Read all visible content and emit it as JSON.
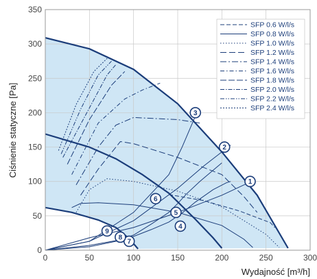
{
  "chart_data": {
    "type": "line",
    "title": "",
    "xlabel": "Wydajność [m³/h]",
    "ylabel": "Ciśnienie statyczne [Pa]",
    "xlim": [
      0,
      300
    ],
    "ylim": [
      0,
      350
    ],
    "xticks": [
      "0",
      "50",
      "100",
      "150",
      "200",
      "250",
      "300"
    ],
    "yticks": [
      "0",
      "50",
      "100",
      "150",
      "200",
      "250",
      "300",
      "350"
    ],
    "grid": true,
    "legend_position": "top-right",
    "colors": {
      "line": "#1b3d7a",
      "fill": "#cfe6f5",
      "grid": "#c8c8c8"
    },
    "envelope": {
      "name": "",
      "points": [
        [
          0,
          309
        ],
        [
          50,
          293
        ],
        [
          100,
          263
        ],
        [
          150,
          213
        ],
        [
          200,
          143
        ],
        [
          240,
          80
        ],
        [
          275,
          3
        ]
      ]
    },
    "fan_curves": [
      {
        "name": "",
        "points": [
          [
            0,
            169
          ],
          [
            50,
            150
          ],
          [
            80,
            133
          ],
          [
            110,
            110
          ],
          [
            140,
            83
          ],
          [
            170,
            45
          ],
          [
            190,
            18
          ],
          [
            200,
            3
          ]
        ]
      },
      {
        "name": "",
        "points": [
          [
            0,
            62
          ],
          [
            30,
            55
          ],
          [
            60,
            44
          ],
          [
            80,
            33
          ],
          [
            95,
            17
          ],
          [
            105,
            2
          ]
        ]
      }
    ],
    "series": [
      {
        "name": "SFP 0.6 W/l/s",
        "dash": "6,3",
        "points": [
          [
            140,
            81
          ],
          [
            180,
            72
          ],
          [
            220,
            57
          ],
          [
            255,
            40
          ],
          [
            260,
            33
          ]
        ]
      },
      {
        "name": "SFP 0.8 W/l/s",
        "dash": "",
        "points": [
          [
            30,
            62
          ],
          [
            40,
            68
          ],
          [
            60,
            69
          ],
          [
            100,
            66
          ],
          [
            150,
            55
          ],
          [
            200,
            36
          ],
          [
            225,
            16
          ],
          [
            235,
            4
          ]
        ]
      },
      {
        "name": "SFP 1.0 W/l/s",
        "dash": "1.5,2.5",
        "points": [
          [
            35,
            55
          ],
          [
            50,
            88
          ],
          [
            70,
            104
          ],
          [
            100,
            100
          ],
          [
            150,
            86
          ],
          [
            200,
            63
          ],
          [
            250,
            23
          ],
          [
            265,
            4
          ]
        ]
      },
      {
        "name": "SFP 1.2 W/l/s",
        "dash": "9,4",
        "points": [
          [
            40,
            80
          ],
          [
            60,
            118
          ],
          [
            85,
            158
          ],
          [
            100,
            155
          ],
          [
            150,
            135
          ],
          [
            200,
            110
          ],
          [
            225,
            78
          ],
          [
            240,
            55
          ]
        ]
      },
      {
        "name": "SFP 1.4 W/l/s",
        "dash": "9,3,2,3",
        "points": [
          [
            35,
            95
          ],
          [
            60,
            150
          ],
          [
            80,
            182
          ],
          [
            100,
            193
          ],
          [
            150,
            190
          ],
          [
            175,
            185
          ]
        ]
      },
      {
        "name": "SFP 1.6 W/l/s",
        "dash": "6,3,1.5,3",
        "points": [
          [
            30,
            110
          ],
          [
            60,
            185
          ],
          [
            90,
            220
          ],
          [
            110,
            233
          ],
          [
            130,
            243
          ]
        ]
      },
      {
        "name": "SFP 1.8 W/l/s",
        "dash": "9,3",
        "points": [
          [
            25,
            125
          ],
          [
            50,
            190
          ],
          [
            75,
            240
          ],
          [
            90,
            260
          ]
        ]
      },
      {
        "name": "SFP 2.0 W/l/s",
        "dash": "6,2,1.5,2",
        "points": [
          [
            20,
            135
          ],
          [
            45,
            195
          ],
          [
            70,
            255
          ],
          [
            80,
            270
          ]
        ]
      },
      {
        "name": "SFP 2.2 W/l/s",
        "dash": "6,2,1.5,2,1.5,2",
        "points": [
          [
            18,
            140
          ],
          [
            40,
            205
          ],
          [
            60,
            255
          ],
          [
            75,
            275
          ]
        ]
      },
      {
        "name": "SFP 2.4 W/l/s",
        "dash": "2,2",
        "points": [
          [
            15,
            145
          ],
          [
            35,
            212
          ],
          [
            55,
            260
          ],
          [
            70,
            279
          ]
        ]
      }
    ],
    "system_curves": [
      {
        "name": "",
        "points": [
          [
            0,
            0
          ],
          [
            50,
            18
          ],
          [
            100,
            33
          ],
          [
            150,
            55
          ],
          [
            200,
            80
          ],
          [
            235,
            101
          ]
        ]
      },
      {
        "name": "",
        "points": [
          [
            0,
            0
          ],
          [
            50,
            13
          ],
          [
            100,
            43
          ],
          [
            150,
            90
          ],
          [
            180,
            123
          ],
          [
            210,
            153
          ]
        ]
      },
      {
        "name": "",
        "points": [
          [
            0,
            0
          ],
          [
            50,
            13
          ],
          [
            100,
            55
          ],
          [
            140,
            110
          ],
          [
            155,
            150
          ],
          [
            172,
            201
          ]
        ]
      },
      {
        "name": "",
        "points": [
          [
            0,
            0
          ],
          [
            50,
            5
          ],
          [
            80,
            13
          ],
          [
            100,
            22
          ],
          [
            120,
            38
          ],
          [
            140,
            55
          ],
          [
            150,
            68
          ],
          [
            160,
            82
          ],
          [
            175,
            100
          ],
          [
            200,
            127
          ]
        ]
      },
      {
        "name": "",
        "points": [
          [
            0,
            0
          ],
          [
            50,
            7
          ],
          [
            80,
            14
          ],
          [
            100,
            20
          ],
          [
            120,
            30
          ],
          [
            140,
            41
          ],
          [
            155,
            54
          ],
          [
            170,
            70
          ],
          [
            190,
            88
          ],
          [
            205,
            98
          ],
          [
            210,
            100
          ]
        ]
      }
    ],
    "markers": [
      {
        "label": "1",
        "x": 232,
        "y": 100
      },
      {
        "label": "2",
        "x": 203,
        "y": 150
      },
      {
        "label": "3",
        "x": 170,
        "y": 200
      },
      {
        "label": "4",
        "x": 153,
        "y": 35
      },
      {
        "label": "5",
        "x": 148,
        "y": 55
      },
      {
        "label": "6",
        "x": 125,
        "y": 75
      },
      {
        "label": "7",
        "x": 95,
        "y": 13
      },
      {
        "label": "8",
        "x": 85,
        "y": 19
      },
      {
        "label": "9",
        "x": 70,
        "y": 28
      }
    ]
  }
}
